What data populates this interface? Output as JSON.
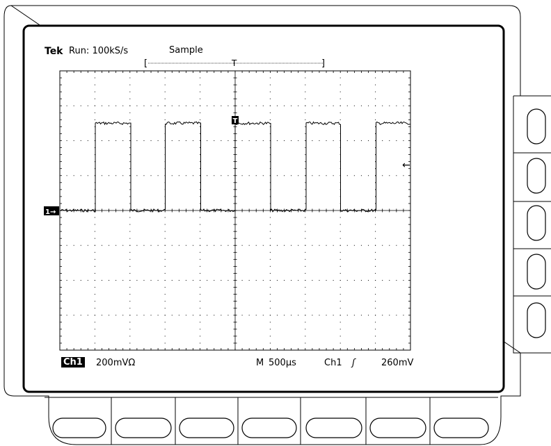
{
  "status": {
    "brand": "Tek",
    "acquisition": "Run: 100kS/s",
    "mode": "Sample",
    "record_markers": {
      "left": "[",
      "trigger": "T",
      "right": "]"
    }
  },
  "markers": {
    "trigger_position": "T",
    "channel_ground": "1→",
    "trigger_level": "←"
  },
  "readout": {
    "channel_badge": "Ch1",
    "channel_scale": "200mVΩ",
    "timebase_label": "M",
    "timebase": "500µs",
    "trigger_source": "Ch1",
    "trigger_slope": "ʃ",
    "trigger_level": "260mV"
  },
  "waveform": {
    "shape": "square",
    "graticule_divisions": {
      "x": 10,
      "y": 8
    },
    "ground_division_from_top": 4,
    "high_level_div": 2.5,
    "low_level_div": 0,
    "duty_cycle": 0.5,
    "period_div": 2,
    "first_rise_div": 1,
    "noise_div": 0.04
  }
}
